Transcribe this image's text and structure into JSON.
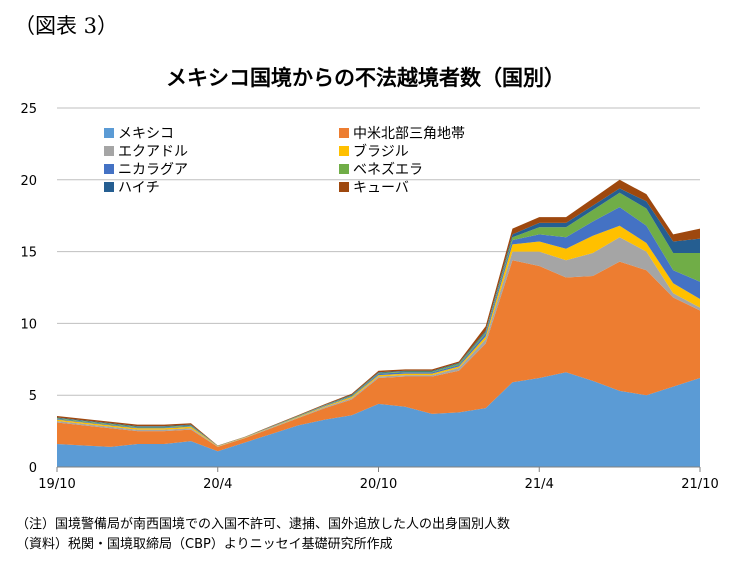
{
  "figure_label": "（図表 3）",
  "notes": {
    "note1": "（注）国境警備局が南西国境での入国不許可、逮捕、国外追放した人の出身国別人数",
    "note2": "（資料）税関・国境取締局（CBP）よりニッセイ基礎研究所作成"
  },
  "chart_data": {
    "type": "area",
    "stacked": true,
    "title": "メキシコ国境からの不法越境者数（国別）",
    "xlabel": "",
    "ylabel": "",
    "ylim": [
      0,
      25
    ],
    "yticks": [
      0,
      5,
      10,
      15,
      20,
      25
    ],
    "grid": true,
    "legend_position": "top-left",
    "x": [
      "19/10",
      "19/11",
      "19/12",
      "20/1",
      "20/2",
      "20/3",
      "20/4",
      "20/5",
      "20/6",
      "20/7",
      "20/8",
      "20/9",
      "20/10",
      "20/11",
      "20/12",
      "21/1",
      "21/2",
      "21/3",
      "21/4",
      "21/5",
      "21/6",
      "21/7",
      "21/8",
      "21/9",
      "21/10"
    ],
    "xtick_labels": [
      "19/10",
      "20/4",
      "20/10",
      "21/4",
      "21/10"
    ],
    "series": [
      {
        "name": "メキシコ",
        "color": "#5b9bd5",
        "values": [
          1.6,
          1.5,
          1.4,
          1.6,
          1.6,
          1.8,
          1.1,
          1.7,
          2.3,
          2.9,
          3.3,
          3.6,
          4.4,
          4.2,
          3.7,
          3.8,
          4.1,
          5.9,
          6.2,
          6.6,
          6.0,
          5.3,
          5.0,
          5.6,
          6.2
        ]
      },
      {
        "name": "中米北部三角地帯",
        "color": "#ed7d31",
        "values": [
          1.5,
          1.4,
          1.3,
          0.9,
          0.9,
          0.8,
          0.3,
          0.3,
          0.4,
          0.5,
          0.8,
          1.1,
          1.8,
          2.1,
          2.6,
          2.9,
          4.5,
          8.5,
          7.8,
          6.6,
          7.3,
          9.0,
          8.7,
          6.2,
          4.7
        ]
      },
      {
        "name": "エクアドル",
        "color": "#a5a5a5",
        "values": [
          0.1,
          0.1,
          0.1,
          0.1,
          0.1,
          0.1,
          0.03,
          0.03,
          0.04,
          0.05,
          0.08,
          0.1,
          0.1,
          0.1,
          0.1,
          0.2,
          0.3,
          0.6,
          1.0,
          1.2,
          1.6,
          1.7,
          1.3,
          0.3,
          0.2
        ]
      },
      {
        "name": "ブラジル",
        "color": "#ffc000",
        "values": [
          0.1,
          0.1,
          0.1,
          0.1,
          0.1,
          0.1,
          0.02,
          0.02,
          0.03,
          0.04,
          0.05,
          0.08,
          0.1,
          0.1,
          0.1,
          0.1,
          0.2,
          0.5,
          0.7,
          0.8,
          1.2,
          0.8,
          0.6,
          0.7,
          0.6
        ]
      },
      {
        "name": "ニカラグア",
        "color": "#4472c4",
        "values": [
          0.05,
          0.05,
          0.05,
          0.05,
          0.05,
          0.05,
          0.01,
          0.01,
          0.02,
          0.03,
          0.04,
          0.05,
          0.1,
          0.1,
          0.1,
          0.1,
          0.2,
          0.3,
          0.5,
          0.8,
          1.0,
          1.3,
          1.2,
          0.9,
          1.2
        ]
      },
      {
        "name": "ベネズエラ",
        "color": "#70ad47",
        "values": [
          0.05,
          0.05,
          0.05,
          0.05,
          0.05,
          0.05,
          0.01,
          0.01,
          0.02,
          0.03,
          0.03,
          0.05,
          0.05,
          0.05,
          0.05,
          0.1,
          0.1,
          0.2,
          0.5,
          0.7,
          0.8,
          1.0,
          1.2,
          1.2,
          2.0
        ]
      },
      {
        "name": "ハイチ",
        "color": "#255e91",
        "values": [
          0.05,
          0.05,
          0.05,
          0.05,
          0.05,
          0.05,
          0.01,
          0.01,
          0.02,
          0.02,
          0.03,
          0.05,
          0.05,
          0.05,
          0.05,
          0.05,
          0.1,
          0.2,
          0.3,
          0.3,
          0.3,
          0.3,
          0.5,
          0.8,
          1.0
        ]
      },
      {
        "name": "キューバ",
        "color": "#9e480e",
        "values": [
          0.1,
          0.1,
          0.1,
          0.1,
          0.1,
          0.1,
          0.02,
          0.02,
          0.03,
          0.04,
          0.05,
          0.07,
          0.1,
          0.1,
          0.1,
          0.1,
          0.3,
          0.4,
          0.4,
          0.4,
          0.5,
          0.6,
          0.5,
          0.5,
          0.7
        ]
      }
    ]
  }
}
